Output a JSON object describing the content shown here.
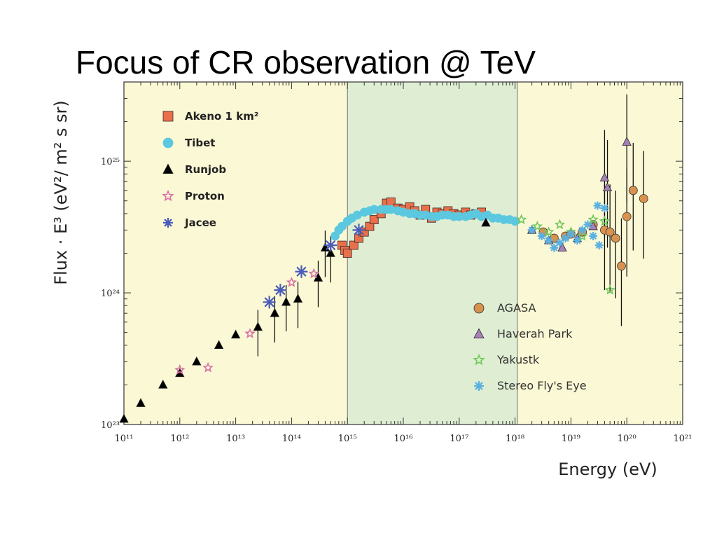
{
  "slide": {
    "title": "Focus of CR observation @ TeV"
  },
  "chart_data": {
    "type": "scatter",
    "title": "",
    "xlabel": "Energy (eV)",
    "ylabel": "Flux · E³ (eV²/ m² s sr)",
    "x_scale": "log",
    "y_scale": "log",
    "xlim": [
      100000000000.0,
      1e+21
    ],
    "ylim": [
      1e+23,
      4e+25
    ],
    "x_ticks": [
      {
        "value": 100000000000.0,
        "label": "10¹¹"
      },
      {
        "value": 1000000000000.0,
        "label": "10¹²"
      },
      {
        "value": 10000000000000.0,
        "label": "10¹³"
      },
      {
        "value": 100000000000000.0,
        "label": "10¹⁴"
      },
      {
        "value": 1000000000000000.0,
        "label": "10¹⁵"
      },
      {
        "value": 1e+16,
        "label": "10¹⁶"
      },
      {
        "value": 1e+17,
        "label": "10¹⁷"
      },
      {
        "value": 1e+18,
        "label": "10¹⁸"
      },
      {
        "value": 1e+19,
        "label": "10¹⁹"
      },
      {
        "value": 1e+20,
        "label": "10²⁰"
      },
      {
        "value": 1e+21,
        "label": "10²¹"
      }
    ],
    "y_ticks": [
      {
        "value": 1e+23,
        "label": "10²³"
      },
      {
        "value": 1e+24,
        "label": "10²⁴"
      },
      {
        "value": 1e+25,
        "label": "10²⁵"
      }
    ],
    "highlight_band": {
      "x_from": 1000000000000000.0,
      "x_to": 1.1e+18,
      "color": "#dfeed3"
    },
    "colors": {
      "plot_background": "#fbf8d5",
      "highlight": "#dfeed3"
    },
    "legend": [
      {
        "group": "top-left",
        "items": [
          "Akeno 1 km²",
          "Tibet",
          "Runjob",
          "Proton",
          "Jacee"
        ]
      },
      {
        "group": "center-right",
        "items": [
          "AGASA",
          "Haverah Park",
          "Yakustk",
          "Stereo Fly's Eye"
        ]
      }
    ],
    "series": [
      {
        "name": "Akeno 1 km²",
        "marker": "square",
        "color": "#e8704a",
        "points": [
          [
            800000000000000.0,
            2.3e+24
          ],
          [
            900000000000000.0,
            2.1e+24
          ],
          [
            1000000000000000.0,
            2e+24
          ],
          [
            1300000000000000.0,
            2.3e+24
          ],
          [
            1600000000000000.0,
            2.6e+24
          ],
          [
            2000000000000000.0,
            2.9e+24
          ],
          [
            2500000000000000.0,
            3.2e+24
          ],
          [
            3000000000000000.0,
            3.6e+24
          ],
          [
            4000000000000000.0,
            4e+24
          ],
          [
            5000000000000000.0,
            4.8e+24
          ],
          [
            6000000000000000.0,
            4.9e+24
          ],
          [
            8000000000000000.0,
            4.4e+24
          ],
          [
            1e+16,
            4.3e+24
          ],
          [
            1.3e+16,
            4.5e+24
          ],
          [
            1.6e+16,
            4.2e+24
          ],
          [
            2e+16,
            3.9e+24
          ],
          [
            2.5e+16,
            4.3e+24
          ],
          [
            3.2e+16,
            3.7e+24
          ],
          [
            4e+16,
            4.1e+24
          ],
          [
            5e+16,
            4e+24
          ],
          [
            6.3e+16,
            4.2e+24
          ],
          [
            8e+16,
            4e+24
          ],
          [
            1e+17,
            3.9e+24
          ],
          [
            1.3e+17,
            4.1e+24
          ],
          [
            1.6e+17,
            3.9e+24
          ],
          [
            2e+17,
            4e+24
          ],
          [
            2.5e+17,
            4.1e+24
          ]
        ]
      },
      {
        "name": "Tibet",
        "marker": "circle",
        "color": "#5bc8e0",
        "points": [
          [
            600000000000000.0,
            2.7e+24
          ],
          [
            700000000000000.0,
            3e+24
          ],
          [
            800000000000000.0,
            3.2e+24
          ],
          [
            1000000000000000.0,
            3.5e+24
          ],
          [
            1200000000000000.0,
            3.7e+24
          ],
          [
            1500000000000000.0,
            3.9e+24
          ],
          [
            2000000000000000.0,
            4.1e+24
          ],
          [
            2500000000000000.0,
            4.2e+24
          ],
          [
            3000000000000000.0,
            4.3e+24
          ],
          [
            4000000000000000.0,
            4.3e+24
          ],
          [
            5000000000000000.0,
            4.3e+24
          ],
          [
            6000000000000000.0,
            4.3e+24
          ],
          [
            8000000000000000.0,
            4.2e+24
          ],
          [
            1e+16,
            4.1e+24
          ],
          [
            1.3e+16,
            4e+24
          ],
          [
            1.6e+16,
            4e+24
          ],
          [
            2e+16,
            3.9e+24
          ],
          [
            2.5e+16,
            3.9e+24
          ],
          [
            3.2e+16,
            3.8e+24
          ],
          [
            4e+16,
            3.8e+24
          ],
          [
            5e+16,
            3.9e+24
          ],
          [
            6.3e+16,
            3.9e+24
          ],
          [
            8e+16,
            3.8e+24
          ],
          [
            1e+17,
            3.8e+24
          ],
          [
            1.3e+17,
            3.8e+24
          ],
          [
            1.6e+17,
            3.9e+24
          ],
          [
            2e+17,
            4e+24
          ],
          [
            2.5e+17,
            3.8e+24
          ],
          [
            3.2e+17,
            3.9e+24
          ],
          [
            4e+17,
            3.7e+24
          ],
          [
            5e+17,
            3.7e+24
          ],
          [
            6.3e+17,
            3.6e+24
          ],
          [
            8e+17,
            3.6e+24
          ],
          [
            1e+18,
            3.5e+24
          ]
        ]
      },
      {
        "name": "Runjob",
        "marker": "triangle",
        "color": "#000000",
        "points": [
          [
            100000000000.0,
            1.1e+23
          ],
          [
            200000000000.0,
            1.45e+23
          ],
          [
            500000000000.0,
            2e+23
          ],
          [
            1000000000000.0,
            2.45e+23
          ],
          [
            2000000000000.0,
            3e+23
          ],
          [
            5000000000000.0,
            4e+23
          ],
          [
            10000000000000.0,
            4.8e+23
          ],
          [
            25000000000000.0,
            5.5e+23
          ],
          [
            50000000000000.0,
            7e+23
          ],
          [
            80000000000000.0,
            8.5e+23
          ],
          [
            130000000000000.0,
            9e+23
          ],
          [
            300000000000000.0,
            1.3e+24
          ],
          [
            400000000000000.0,
            2.2e+24
          ],
          [
            500000000000000.0,
            2e+24
          ],
          [
            3e+17,
            3.4e+24
          ]
        ]
      },
      {
        "name": "Proton",
        "marker": "star",
        "color": "#d96fa6",
        "points": [
          [
            1000000000000.0,
            2.6e+23
          ],
          [
            3200000000000.0,
            2.7e+23
          ],
          [
            18000000000000.0,
            4.9e+23
          ],
          [
            100000000000000.0,
            1.2e+24
          ],
          [
            250000000000000.0,
            1.4e+24
          ]
        ]
      },
      {
        "name": "Jacee",
        "marker": "asterisk",
        "color": "#4a5cb8",
        "points": [
          [
            40000000000000.0,
            8.5e+23
          ],
          [
            63000000000000.0,
            1.05e+24
          ],
          [
            150000000000000.0,
            1.45e+24
          ],
          [
            500000000000000.0,
            2.3e+24
          ],
          [
            1600000000000000.0,
            3e+24
          ]
        ]
      },
      {
        "name": "AGASA",
        "marker": "circle",
        "color": "#d8924e",
        "points": [
          [
            3.2e+18,
            2.9e+24
          ],
          [
            5e+18,
            2.6e+24
          ],
          [
            8e+18,
            2.7e+24
          ],
          [
            1e+19,
            2.8e+24
          ],
          [
            1.6e+19,
            2.9e+24
          ],
          [
            2.5e+19,
            3.3e+24
          ],
          [
            4e+19,
            3e+24
          ],
          [
            5e+19,
            2.9e+24
          ],
          [
            6.3e+19,
            2.6e+24
          ],
          [
            8e+19,
            1.6e+24
          ],
          [
            1e+20,
            3.8e+24
          ],
          [
            1.3e+20,
            6e+24
          ],
          [
            2e+20,
            5.2e+24
          ]
        ]
      },
      {
        "name": "Haverah Park",
        "marker": "triangle",
        "color": "#a680b8",
        "points": [
          [
            2e+18,
            3e+24
          ],
          [
            4e+18,
            2.5e+24
          ],
          [
            7e+18,
            2.2e+24
          ],
          [
            1.3e+19,
            2.6e+24
          ],
          [
            2.5e+19,
            3.2e+24
          ],
          [
            4e+19,
            7.5e+24
          ],
          [
            4.5e+19,
            6.3e+24
          ],
          [
            1e+20,
            1.4e+25
          ]
        ]
      },
      {
        "name": "Yakustk",
        "marker": "star",
        "color": "#6fc85a",
        "points": [
          [
            1.3e+18,
            3.6e+24
          ],
          [
            2.5e+18,
            3.2e+24
          ],
          [
            4e+18,
            2.9e+24
          ],
          [
            6.3e+18,
            3.3e+24
          ],
          [
            1e+19,
            2.9e+24
          ],
          [
            1.6e+19,
            2.7e+24
          ],
          [
            2.5e+19,
            3.6e+24
          ],
          [
            4e+19,
            3.5e+24
          ],
          [
            5e+19,
            1.05e+24
          ]
        ]
      },
      {
        "name": "Stereo Fly's Eye",
        "marker": "asterisk",
        "color": "#5ab0e0",
        "points": [
          [
            2e+18,
            3e+24
          ],
          [
            3e+18,
            2.7e+24
          ],
          [
            4e+18,
            2.5e+24
          ],
          [
            5e+18,
            2.2e+24
          ],
          [
            6.3e+18,
            2.4e+24
          ],
          [
            8e+18,
            2.6e+24
          ],
          [
            1e+19,
            2.8e+24
          ],
          [
            1.3e+19,
            2.5e+24
          ],
          [
            1.6e+19,
            3e+24
          ],
          [
            2e+19,
            3.3e+24
          ],
          [
            2.5e+19,
            2.7e+24
          ],
          [
            3e+19,
            4.6e+24
          ],
          [
            4e+19,
            4.4e+24
          ],
          [
            3.2e+19,
            2.3e+24
          ]
        ]
      }
    ]
  }
}
